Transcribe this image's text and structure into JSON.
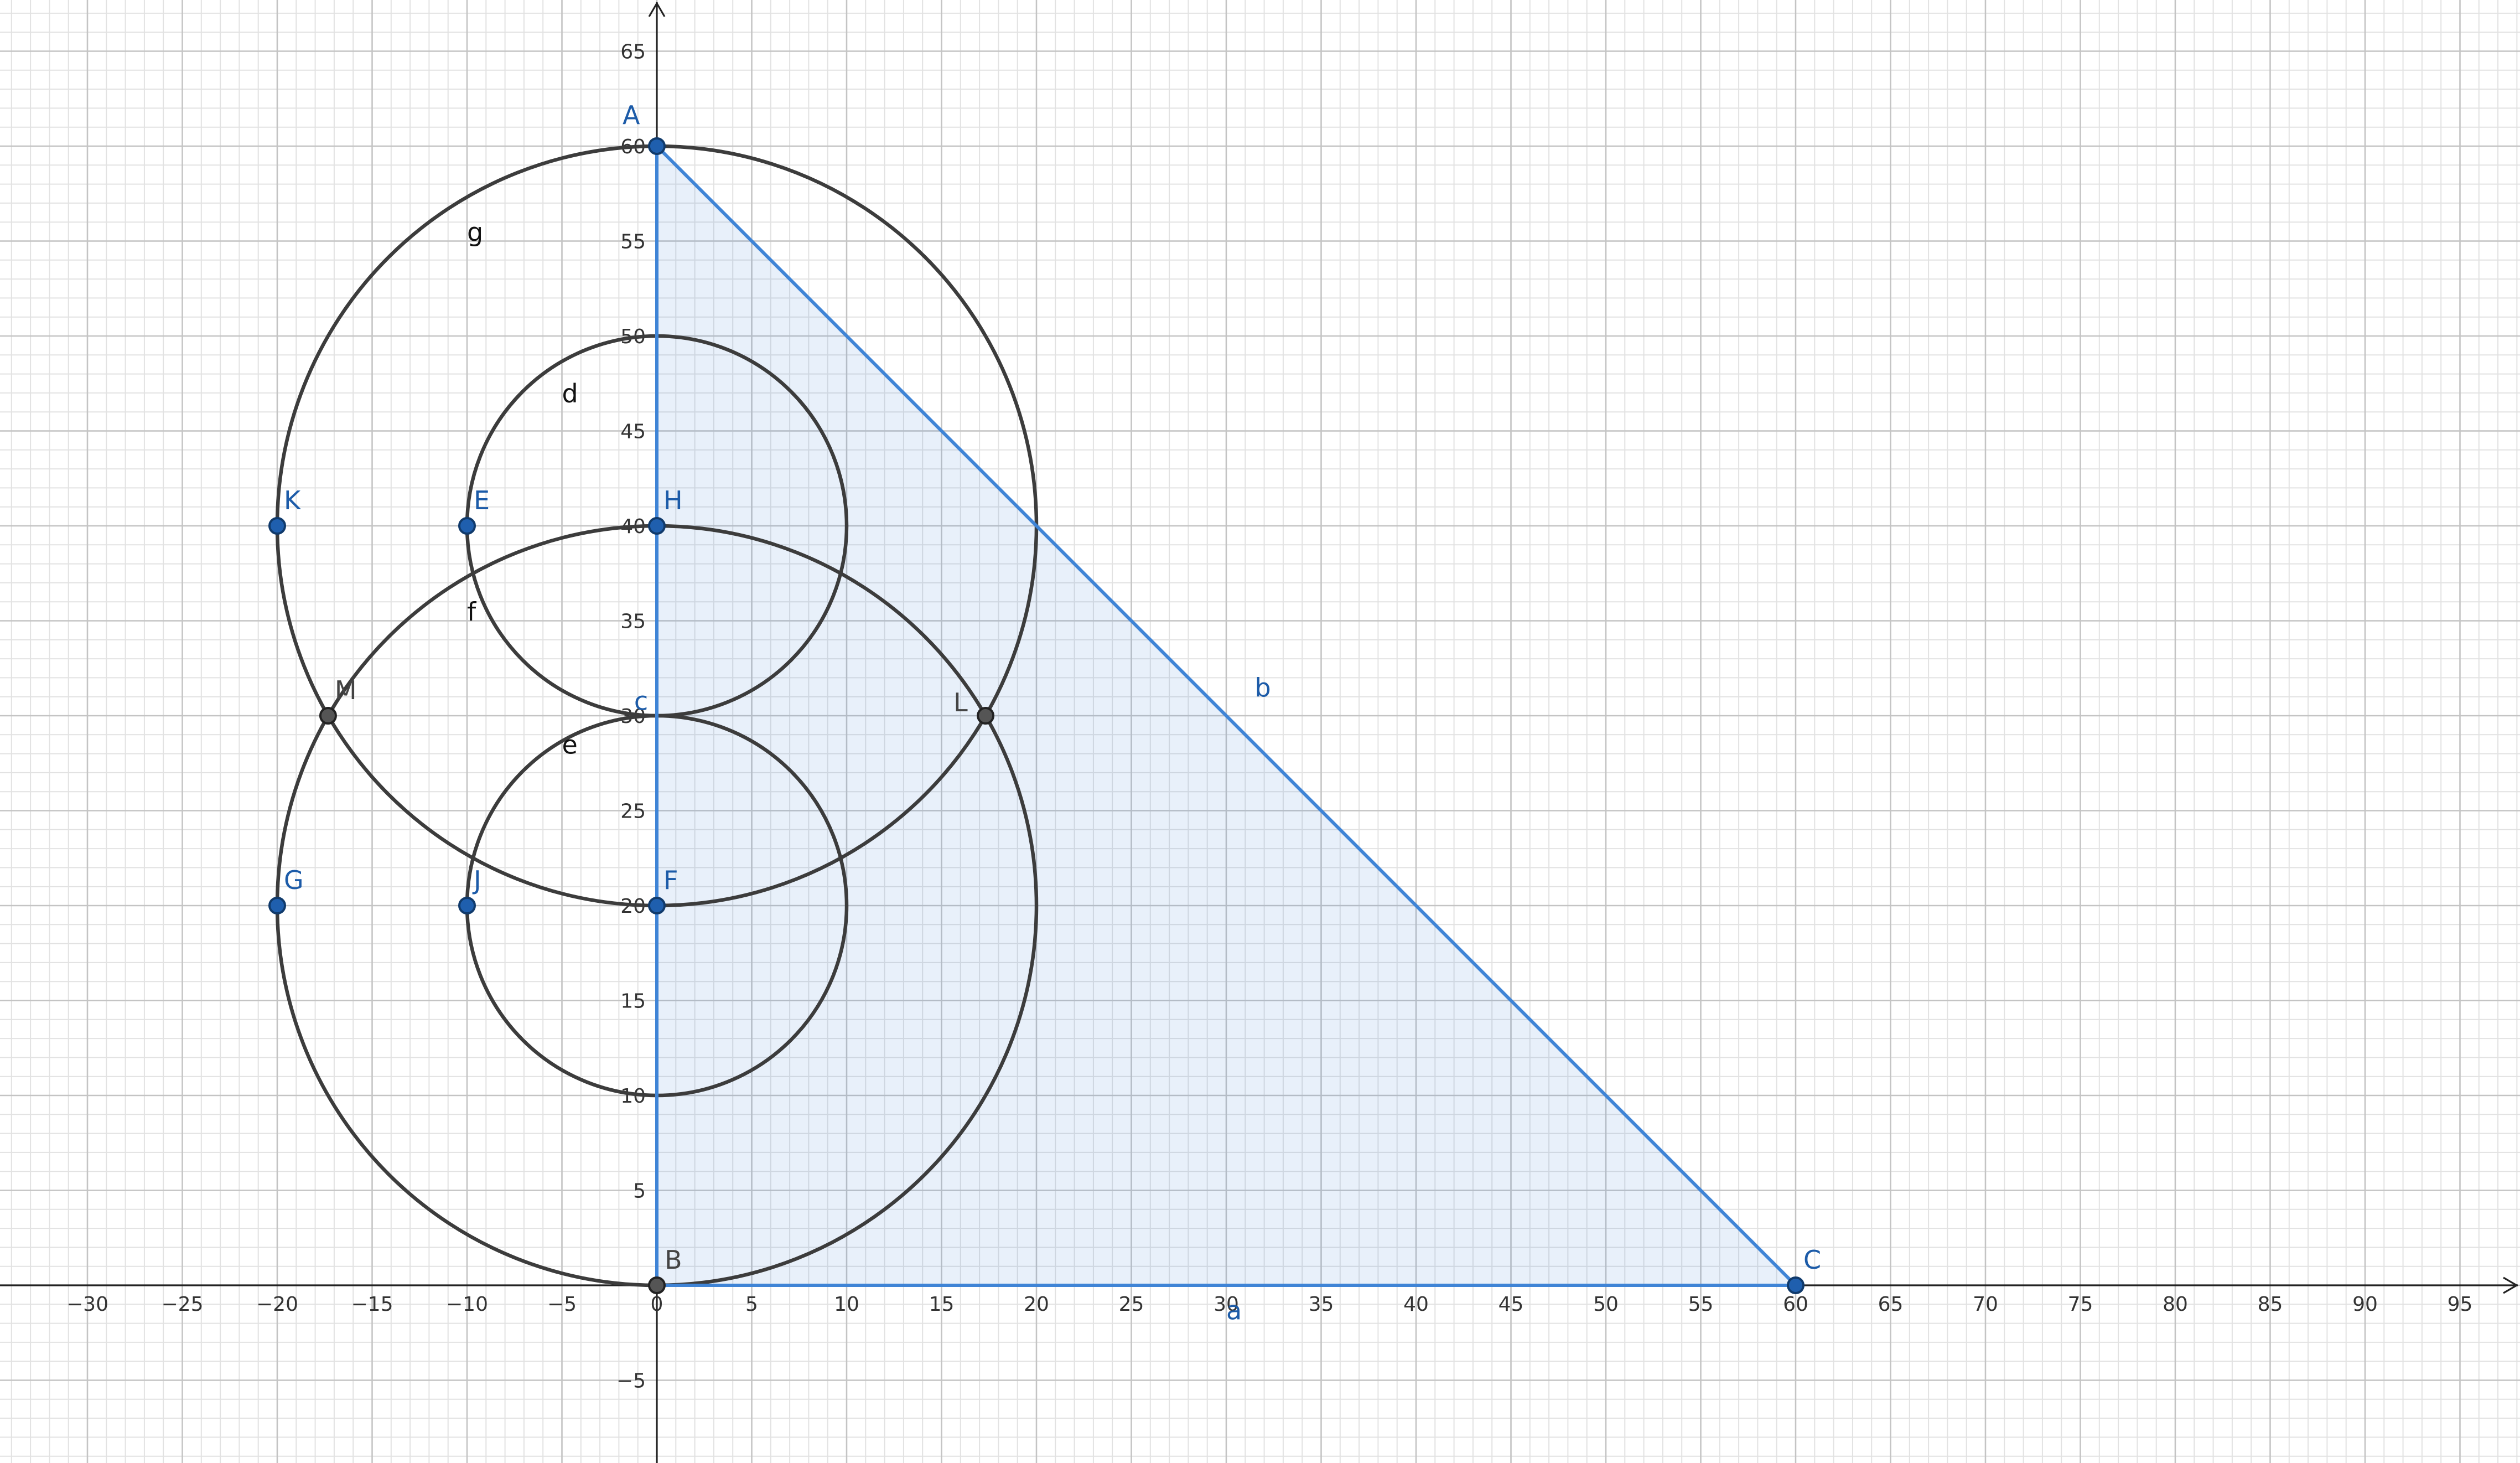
{
  "view": {
    "x_range": [
      -35,
      97
    ],
    "y_range": [
      -9.2,
      68
    ],
    "major_step": 5,
    "minor_step": 1,
    "x_tick_labels": [
      "−30",
      "−25",
      "−20",
      "−15",
      "−10",
      "−5",
      "0",
      "5",
      "10",
      "15",
      "20",
      "25",
      "30",
      "35",
      "40",
      "45",
      "50",
      "55",
      "60",
      "65",
      "70",
      "75",
      "80",
      "85",
      "90",
      "95"
    ],
    "x_tick_values": [
      -30,
      -25,
      -20,
      -15,
      -10,
      -5,
      0,
      5,
      10,
      15,
      20,
      25,
      30,
      35,
      40,
      45,
      50,
      55,
      60,
      65,
      70,
      75,
      80,
      85,
      90,
      95
    ],
    "y_tick_labels": [
      "−5",
      "5",
      "10",
      "15",
      "20",
      "25",
      "30",
      "35",
      "40",
      "45",
      "50",
      "55",
      "60",
      "65"
    ],
    "y_tick_values": [
      -5,
      5,
      10,
      15,
      20,
      25,
      30,
      35,
      40,
      45,
      50,
      55,
      60,
      65
    ],
    "grid": true
  },
  "colors": {
    "point_free": "#1f5fae",
    "point_dependent": "#555555",
    "segment": "#3f84d6",
    "circle": "#3c3c3c",
    "label_blue": "#1c5ba8",
    "label_black": "#111111"
  },
  "points": [
    {
      "name": "A",
      "x": 0,
      "y": 60,
      "kind": "free"
    },
    {
      "name": "B",
      "x": 0,
      "y": 0,
      "kind": "dependent"
    },
    {
      "name": "C",
      "x": 60,
      "y": 0,
      "kind": "free"
    },
    {
      "name": "H",
      "x": 0,
      "y": 40,
      "kind": "free"
    },
    {
      "name": "F",
      "x": 0,
      "y": 20,
      "kind": "free"
    },
    {
      "name": "E",
      "x": -10,
      "y": 40,
      "kind": "free"
    },
    {
      "name": "K",
      "x": -20,
      "y": 40,
      "kind": "free"
    },
    {
      "name": "G",
      "x": -20,
      "y": 20,
      "kind": "free"
    },
    {
      "name": "J",
      "x": -10,
      "y": 20,
      "kind": "free"
    },
    {
      "name": "M",
      "x": -17.32,
      "y": 30,
      "kind": "dependent"
    },
    {
      "name": "L",
      "x": 17.32,
      "y": 30,
      "kind": "dependent"
    }
  ],
  "circles": [
    {
      "name": "g",
      "cx": 0,
      "cy": 40,
      "r": 20,
      "label_x": -10,
      "label_y": 55
    },
    {
      "name": "d",
      "cx": 0,
      "cy": 40,
      "r": 10,
      "label_x": -5,
      "label_y": 46.5
    },
    {
      "name": "f",
      "cx": 0,
      "cy": 20,
      "r": 20,
      "label_x": -10,
      "label_y": 35
    },
    {
      "name": "e",
      "cx": 0,
      "cy": 20,
      "r": 10,
      "label_x": -5,
      "label_y": 28
    }
  ],
  "polygon": {
    "vertices": [
      "A",
      "B",
      "C"
    ]
  },
  "segments": [
    {
      "name": "a",
      "from": "B",
      "to": "C",
      "label_x": 30,
      "label_y": -1.8
    },
    {
      "name": "b",
      "from": "A",
      "to": "C",
      "label_x": 31.5,
      "label_y": 31
    },
    {
      "name": "c",
      "from": "A",
      "to": "B",
      "label_x": -1.2,
      "label_y": 30.3
    }
  ]
}
